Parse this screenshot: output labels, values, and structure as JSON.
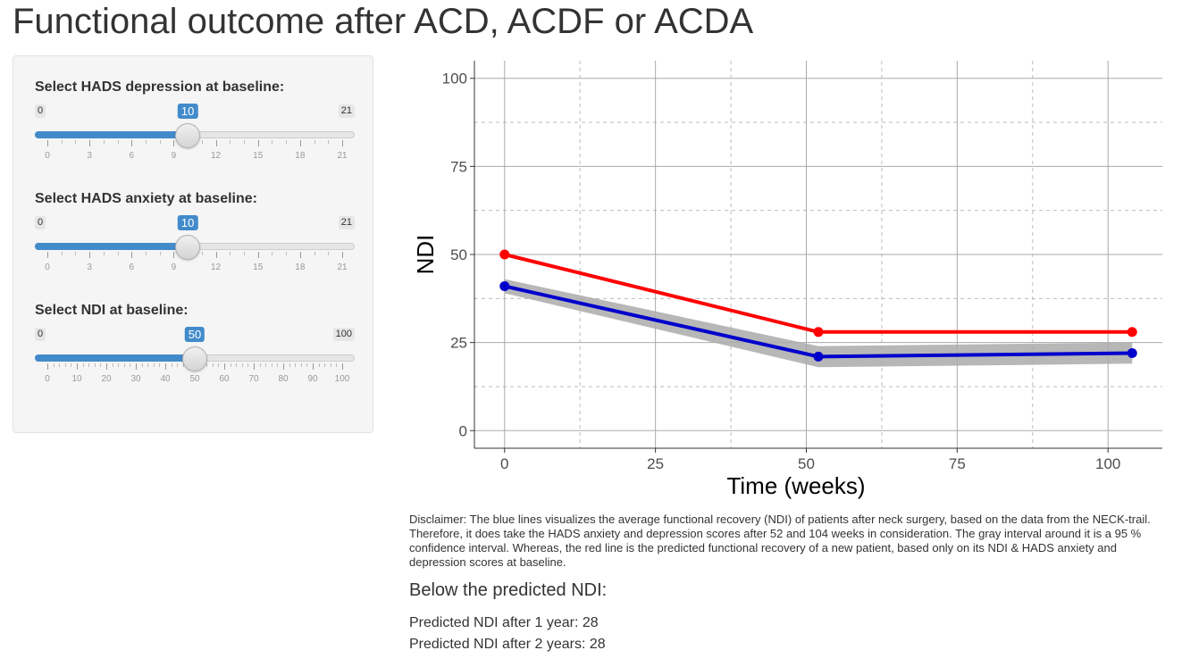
{
  "page": {
    "title": "Functional outcome after ACD, ACDF or ACDA"
  },
  "sliders": [
    {
      "id": "hads-depression",
      "label": "Select HADS depression at baseline:",
      "min": 0,
      "max": 21,
      "value": 10,
      "ticks": [
        0,
        3,
        6,
        9,
        12,
        15,
        18,
        21
      ],
      "minor_per_major": 3
    },
    {
      "id": "hads-anxiety",
      "label": "Select HADS anxiety at baseline:",
      "min": 0,
      "max": 21,
      "value": 10,
      "ticks": [
        0,
        3,
        6,
        9,
        12,
        15,
        18,
        21
      ],
      "minor_per_major": 3
    },
    {
      "id": "ndi",
      "label": "Select NDI at baseline:",
      "min": 0,
      "max": 100,
      "value": 50,
      "ticks": [
        0,
        10,
        20,
        30,
        40,
        50,
        60,
        70,
        80,
        90,
        100
      ],
      "minor_per_major": 5
    }
  ],
  "chart_data": {
    "type": "line",
    "title": "",
    "xlabel": "Time (weeks)",
    "ylabel": "NDI",
    "xlim": [
      -5,
      109
    ],
    "ylim": [
      -5,
      105
    ],
    "x_ticks": [
      0,
      25,
      50,
      75,
      100
    ],
    "y_ticks": [
      0,
      25,
      50,
      75,
      100
    ],
    "grid": true,
    "series": [
      {
        "name": "",
        "color": "#ff0000",
        "x": [
          0,
          52,
          104
        ],
        "y": [
          50,
          28,
          28
        ]
      },
      {
        "name": "",
        "color": "#0000cc",
        "x": [
          0,
          52,
          104
        ],
        "y": [
          41,
          21,
          22
        ],
        "ci_lower": [
          39,
          18,
          19
        ],
        "ci_upper": [
          43,
          24,
          25
        ],
        "ci_color": "#aaaaaa"
      }
    ]
  },
  "disclaimer": "Disclaimer: The blue lines visualizes the average functional recovery (NDI) of patients after neck surgery, based on the data from the NECK-trail. Therefore, it does take the HADS anxiety and depression scores after 52 and 104 weeks in consideration. The gray interval around it is a 95 % confidence interval. Whereas, the red line is the predicted functional recovery of a new patient, based only on its NDI & HADS anxiety and depression scores at baseline.",
  "predicted": {
    "heading": "Below the predicted NDI:",
    "year1": "Predicted NDI after 1 year: 28",
    "year2": "Predicted NDI after 2 years: 28"
  }
}
